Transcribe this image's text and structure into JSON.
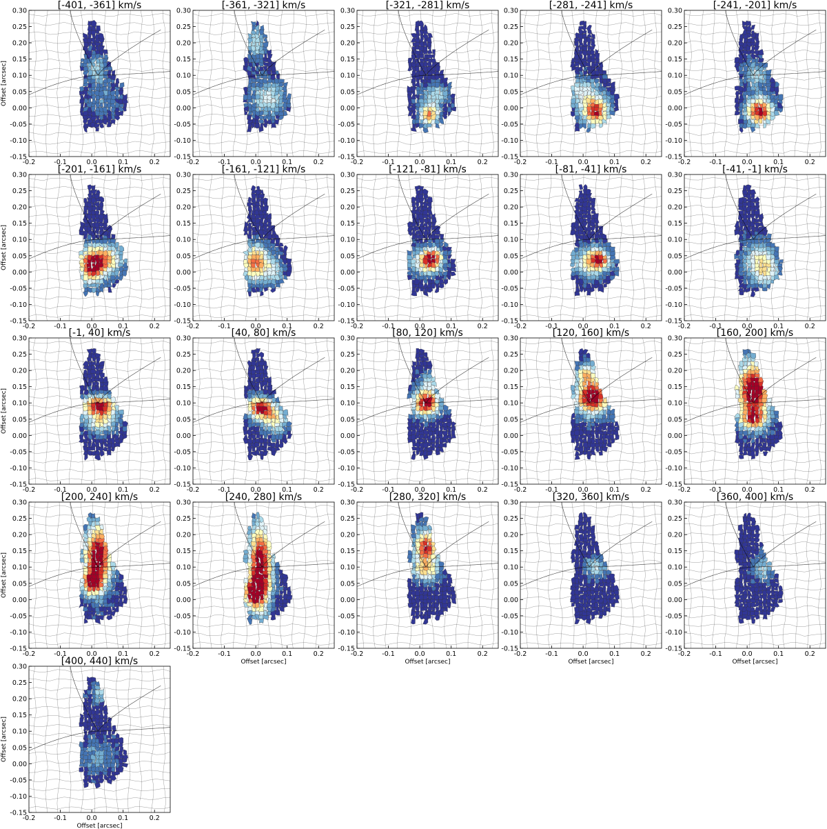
{
  "figure": {
    "panel_titles": [
      "[-401, -361] km/s",
      "[-361, -321] km/s",
      "[-321, -281] km/s",
      "[-281, -241] km/s",
      "[-241, -201] km/s",
      "[-201, -161] km/s",
      "[-161, -121] km/s",
      "[-121, -81] km/s",
      "[-81, -41] km/s",
      "[-41, -1] km/s",
      "[-1, 40] km/s",
      "[40, 80] km/s",
      "[80, 120] km/s",
      "[120, 160] km/s",
      "[160, 200] km/s",
      "[200, 240] km/s",
      "[240, 280] km/s",
      "[280, 320] km/s",
      "[320, 360] km/s",
      "[360, 400] km/s",
      "[400, 440] km/s"
    ],
    "xlabel": "Offset [arcsec]",
    "ylabel": "Offset [arcsec]",
    "xlabel_shown_on": [
      16,
      17,
      18,
      19,
      20
    ],
    "ylabel_shown_on": [
      0,
      5,
      10,
      15,
      20
    ],
    "xticks": [
      "-0.2",
      "-0.1",
      "0.0",
      "0.1",
      "0.2"
    ],
    "yticks": [
      "-0.15",
      "-0.10",
      "-0.05",
      "0.00",
      "0.05",
      "0.10",
      "0.15",
      "0.20",
      "0.25",
      "0.30"
    ]
  },
  "chart_data": {
    "type": "heatmap",
    "layout": "grid of 21 panels, 5 columns, 5 rows (last row has 1 panel)",
    "xlim": [
      -0.2,
      0.25
    ],
    "ylim": [
      -0.15,
      0.3
    ],
    "colormap": [
      "#313695",
      "#4575b4",
      "#74add1",
      "#abd9e9",
      "#e0f3f8",
      "#ffffbf",
      "#fee090",
      "#fdae61",
      "#f46d43",
      "#d73027",
      "#a50026"
    ],
    "lens_critical_curve": "thin black curves across upper half of each panel (cusp near x=0.02, y=0.10)",
    "panels": [
      {
        "v": [
          -401,
          -361
        ],
        "blobs": [
          [
            0.015,
            0.12,
            0.03,
            0.04,
            0.3
          ],
          [
            0.04,
            0.03,
            0.05,
            0.05,
            0.15
          ]
        ]
      },
      {
        "v": [
          -361,
          -321
        ],
        "blobs": [
          [
            0.0,
            0.2,
            0.03,
            0.05,
            0.35
          ],
          [
            0.04,
            0.03,
            0.05,
            0.05,
            0.4
          ]
        ]
      },
      {
        "v": [
          -321,
          -281
        ],
        "blobs": [
          [
            0.03,
            -0.02,
            0.03,
            0.03,
            0.75
          ],
          [
            0.05,
            0.04,
            0.04,
            0.03,
            0.35
          ]
        ]
      },
      {
        "v": [
          -281,
          -241
        ],
        "blobs": [
          [
            0.04,
            -0.01,
            0.04,
            0.04,
            0.95
          ],
          [
            0.0,
            0.05,
            0.05,
            0.04,
            0.4
          ]
        ]
      },
      {
        "v": [
          -241,
          -201
        ],
        "blobs": [
          [
            0.04,
            -0.01,
            0.04,
            0.04,
            1.0
          ],
          [
            0.03,
            0.1,
            0.04,
            0.04,
            0.3
          ]
        ]
      },
      {
        "v": [
          -201,
          -161
        ],
        "blobs": [
          [
            0.0,
            0.02,
            0.04,
            0.05,
            1.0
          ],
          [
            0.05,
            0.04,
            0.05,
            0.04,
            0.6
          ]
        ]
      },
      {
        "v": [
          -161,
          -121
        ],
        "blobs": [
          [
            0.0,
            0.03,
            0.04,
            0.05,
            0.85
          ],
          [
            0.06,
            0.0,
            0.03,
            0.04,
            0.3
          ]
        ]
      },
      {
        "v": [
          -121,
          -81
        ],
        "blobs": [
          [
            0.04,
            0.04,
            0.03,
            0.03,
            0.9
          ],
          [
            0.01,
            0.03,
            0.05,
            0.04,
            0.4
          ]
        ]
      },
      {
        "v": [
          -81,
          -41
        ],
        "blobs": [
          [
            0.05,
            0.04,
            0.03,
            0.03,
            0.75
          ],
          [
            0.02,
            0.03,
            0.06,
            0.04,
            0.45
          ]
        ]
      },
      {
        "v": [
          -41,
          -1
        ],
        "blobs": [
          [
            0.04,
            0.04,
            0.05,
            0.05,
            0.42
          ],
          [
            0.06,
            0.0,
            0.04,
            0.04,
            0.4
          ]
        ]
      },
      {
        "v": [
          -1,
          40
        ],
        "blobs": [
          [
            0.025,
            0.09,
            0.05,
            0.03,
            1.05
          ],
          [
            0.03,
            0.04,
            0.05,
            0.03,
            0.45
          ]
        ]
      },
      {
        "v": [
          40,
          80
        ],
        "blobs": [
          [
            0.015,
            0.085,
            0.04,
            0.03,
            1.05
          ],
          [
            0.06,
            0.05,
            0.04,
            0.04,
            0.5
          ]
        ]
      },
      {
        "v": [
          80,
          120
        ],
        "blobs": [
          [
            0.02,
            0.1,
            0.04,
            0.035,
            1.05
          ],
          [
            0.03,
            0.16,
            0.03,
            0.04,
            0.3
          ]
        ]
      },
      {
        "v": [
          120,
          160
        ],
        "blobs": [
          [
            0.03,
            0.12,
            0.05,
            0.05,
            1.15
          ],
          [
            0.01,
            0.19,
            0.03,
            0.03,
            0.55
          ]
        ]
      },
      {
        "v": [
          160,
          200
        ],
        "blobs": [
          [
            0.02,
            0.14,
            0.05,
            0.08,
            1.2
          ],
          [
            0.02,
            0.05,
            0.04,
            0.03,
            0.7
          ]
        ]
      },
      {
        "v": [
          200,
          240
        ],
        "blobs": [
          [
            0.02,
            0.13,
            0.04,
            0.09,
            1.2
          ],
          [
            0.0,
            0.05,
            0.03,
            0.03,
            0.8
          ]
        ]
      },
      {
        "v": [
          240,
          280
        ],
        "blobs": [
          [
            0.015,
            0.1,
            0.035,
            0.12,
            1.2
          ],
          [
            -0.01,
            0.02,
            0.03,
            0.04,
            0.9
          ]
        ]
      },
      {
        "v": [
          280,
          320
        ],
        "blobs": [
          [
            0.02,
            0.16,
            0.035,
            0.05,
            0.95
          ],
          [
            0.02,
            0.09,
            0.04,
            0.03,
            0.55
          ]
        ]
      },
      {
        "v": [
          320,
          360
        ],
        "blobs": [
          [
            0.04,
            0.1,
            0.03,
            0.03,
            0.35
          ]
        ]
      },
      {
        "v": [
          360,
          400
        ],
        "blobs": [
          [
            0.08,
            0.16,
            0.015,
            0.02,
            0.6
          ],
          [
            0.05,
            0.1,
            0.03,
            0.04,
            0.3
          ]
        ]
      },
      {
        "v": [
          400,
          440
        ],
        "blobs": [
          [
            0.03,
            0.22,
            0.03,
            0.03,
            0.3
          ],
          [
            0.02,
            0.02,
            0.05,
            0.05,
            0.2
          ]
        ]
      }
    ]
  }
}
